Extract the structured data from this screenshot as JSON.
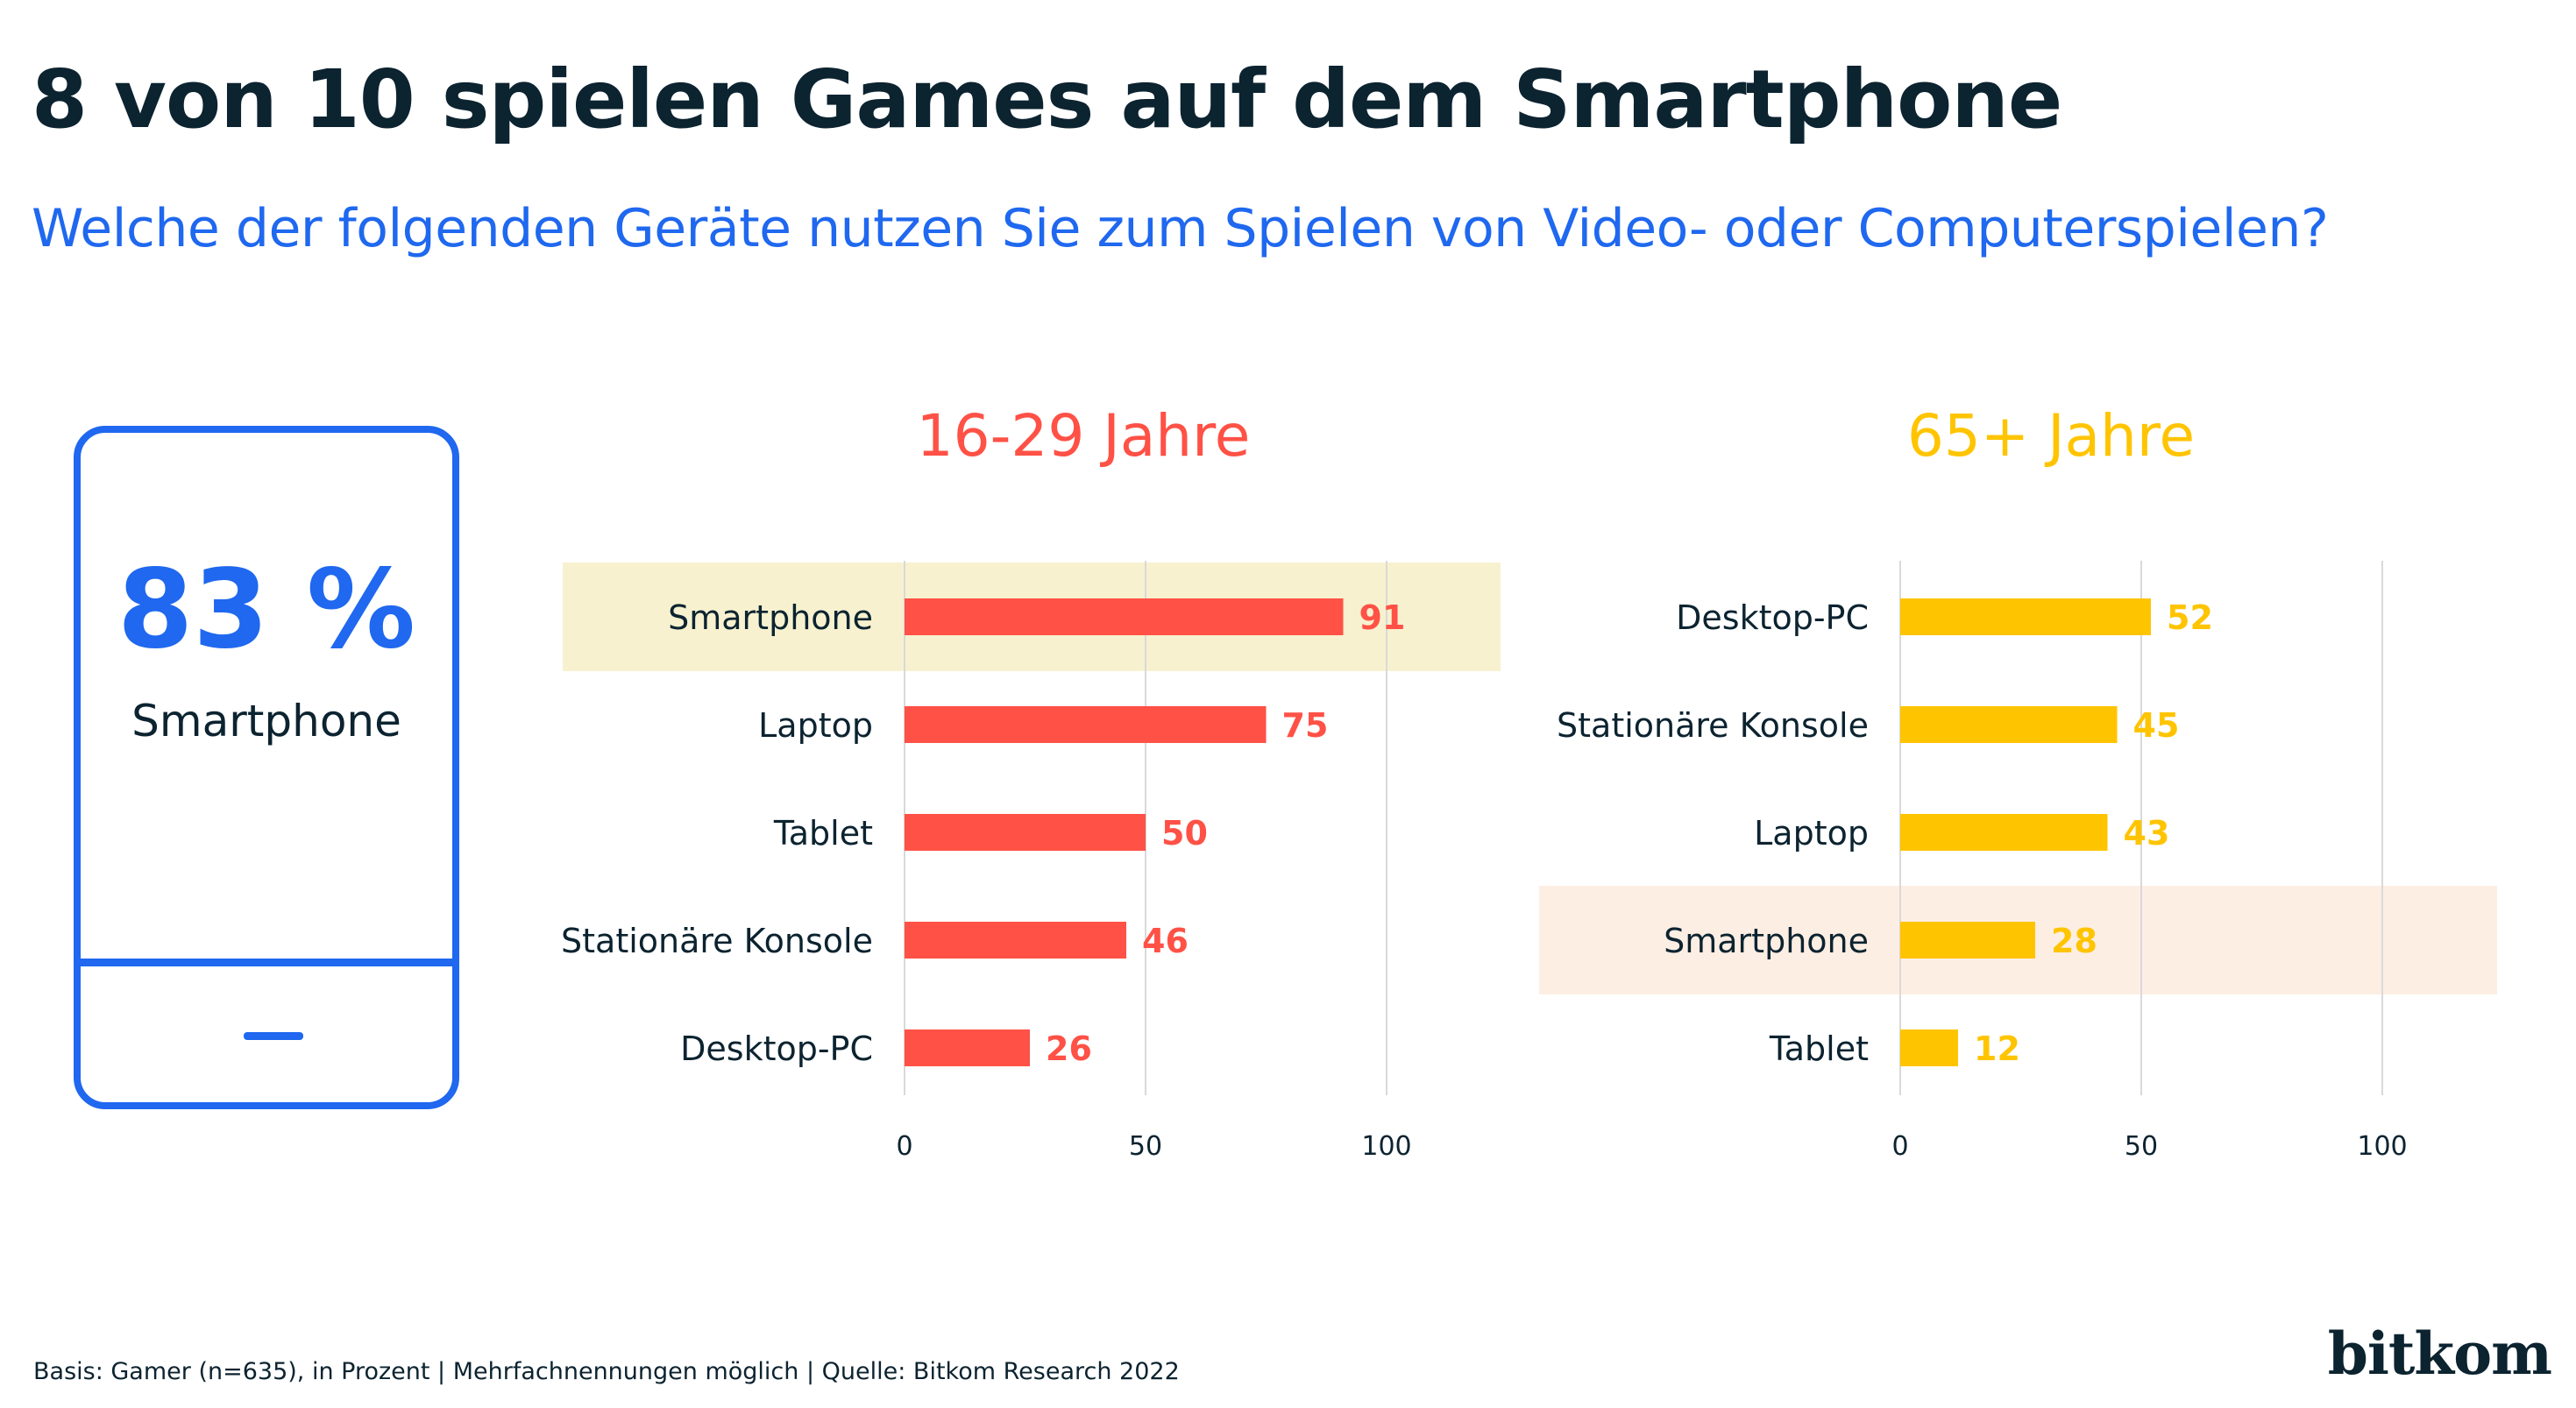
{
  "title": "8 von 10 spielen Games auf dem Smartphone",
  "subtitle": "Welche der folgenden Geräte nutzen Sie zum Spielen von Video- oder Computerspielen?",
  "highlight": {
    "value": "83 %",
    "label": "Smartphone",
    "color": "#1f68ef"
  },
  "footer": "Basis: Gamer (n=635), in Prozent | Mehrfachnennungen möglich | Quelle: Bitkom Research 2022",
  "brand": "bitkom",
  "colors": {
    "text": "#0c2330",
    "grid": "#d9d9d9"
  },
  "chart_data": [
    {
      "type": "bar",
      "orientation": "horizontal",
      "title": "16-29 Jahre",
      "categories": [
        "Smartphone",
        "Laptop",
        "Tablet",
        "Stationäre Konsole",
        "Desktop-PC"
      ],
      "values": [
        91,
        75,
        50,
        46,
        26
      ],
      "highlighted_category": "Smartphone",
      "xlim": [
        0,
        100
      ],
      "xticks": [
        0,
        50,
        100
      ],
      "grid": true,
      "color": "#ff5146",
      "highlight_color": "#f7f1cf"
    },
    {
      "type": "bar",
      "orientation": "horizontal",
      "title": "65+ Jahre",
      "categories": [
        "Desktop-PC",
        "Stationäre Konsole",
        "Laptop",
        "Smartphone",
        "Tablet"
      ],
      "values": [
        52,
        45,
        43,
        28,
        12
      ],
      "highlighted_category": "Smartphone",
      "xlim": [
        0,
        100
      ],
      "xticks": [
        0,
        50,
        100
      ],
      "grid": true,
      "color": "#ffc400",
      "highlight_color": "#fdeee3"
    }
  ]
}
